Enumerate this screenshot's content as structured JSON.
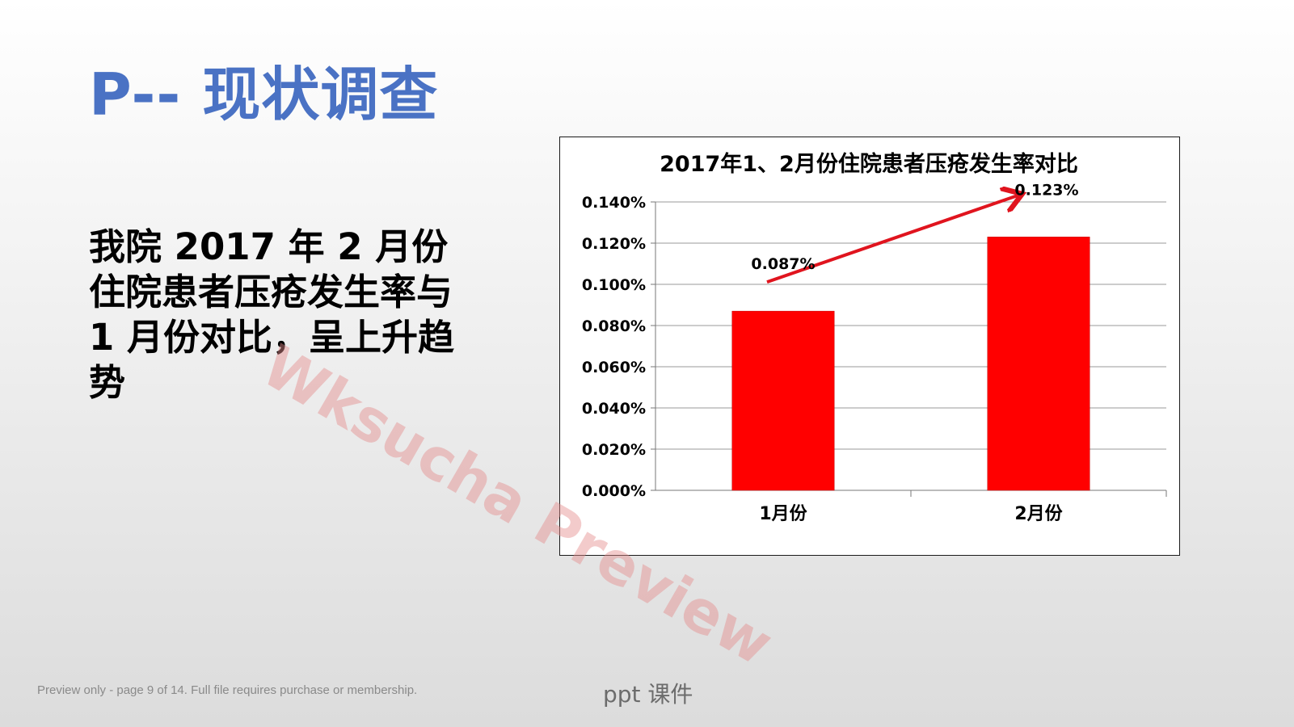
{
  "slide": {
    "title": "P-- 现状调查",
    "body": "我院 2017 年 2 月份住院患者压疮发生率与 1 月份对比，呈上升趋势"
  },
  "chart_data": {
    "type": "bar",
    "title": "2017年1、2月份住院患者压疮发生率对比",
    "categories": [
      "1月份",
      "2月份"
    ],
    "values": [
      0.087,
      0.123
    ],
    "data_labels": [
      "0.087%",
      "0.123%"
    ],
    "y_ticks": [
      "0.000%",
      "0.020%",
      "0.040%",
      "0.060%",
      "0.080%",
      "0.100%",
      "0.120%",
      "0.140%"
    ],
    "ylim": [
      0,
      0.14
    ],
    "xlabel": "",
    "ylabel": "",
    "grid": true,
    "legend": "none",
    "bar_color": "#ff0000",
    "trend_arrow": true
  },
  "watermark": "Wksucha Preview",
  "footer": {
    "note": "Preview only - page 9 of 14. Full file requires purchase or membership.",
    "center": "ppt 课件"
  }
}
